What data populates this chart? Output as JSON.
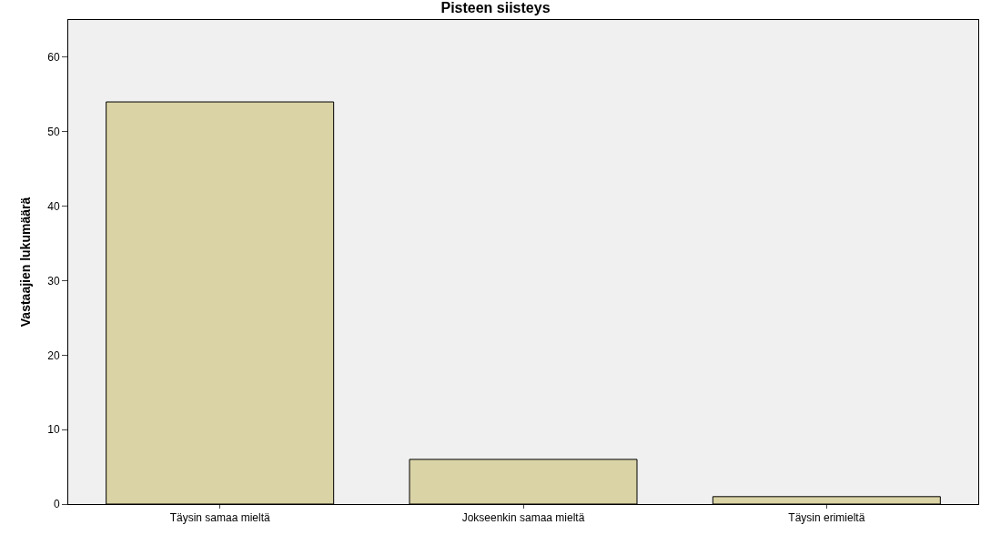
{
  "chart_data": {
    "type": "bar",
    "title": "Pisteen siisteys",
    "ylabel": "Vastaajien lukumäärä",
    "categories": [
      "Täysin samaa mieltä",
      "Jokseenkin samaa mieltä",
      "Täysin erimieltä"
    ],
    "values": [
      54,
      6,
      1
    ],
    "color": "#d9d3a5",
    "ylim": [
      0,
      65
    ],
    "yticks": [
      0,
      10,
      20,
      30,
      40,
      50,
      60
    ]
  }
}
